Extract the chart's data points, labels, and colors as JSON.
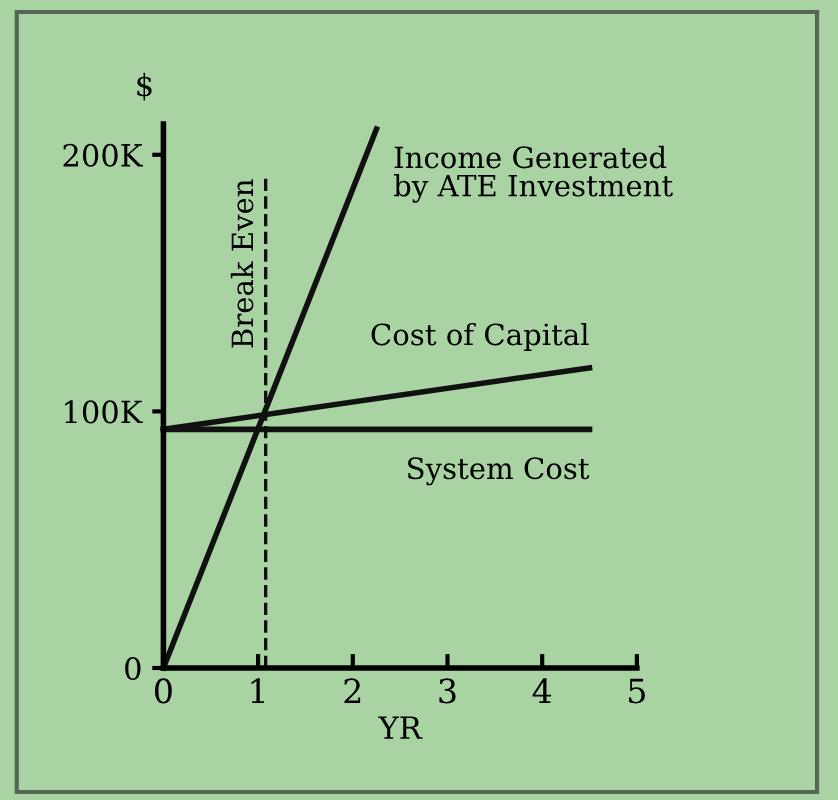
{
  "chart_data": {
    "type": "line",
    "xlabel": "YR",
    "ylabel": "$",
    "xlim": [
      0,
      5
    ],
    "xticks": [
      0,
      1,
      2,
      3,
      4,
      5
    ],
    "ylim": [
      0,
      212
    ],
    "yticks": [
      0,
      {
        "value": 100,
        "label": "100K"
      },
      {
        "value": 200,
        "label": "200K"
      }
    ],
    "series": [
      {
        "name": "Income Generated\nby ATE Investment",
        "color": "#111111",
        "x": [
          0,
          2.25
        ],
        "values": [
          0,
          210
        ]
      },
      {
        "name": "Cost of Capital",
        "color": "#111111",
        "x": [
          0,
          4.5
        ],
        "values": [
          93,
          117
        ]
      },
      {
        "name": "System Cost",
        "color": "#111111",
        "x": [
          0,
          4.5
        ],
        "values": [
          93,
          93
        ]
      }
    ],
    "ref_lines": [
      {
        "axis": "x",
        "value": 1.08,
        "label": "Break Even",
        "line_style": "dashed",
        "color": "#111111"
      }
    ],
    "grid": false,
    "legend": false,
    "marker": "none",
    "line_style": "solid"
  }
}
